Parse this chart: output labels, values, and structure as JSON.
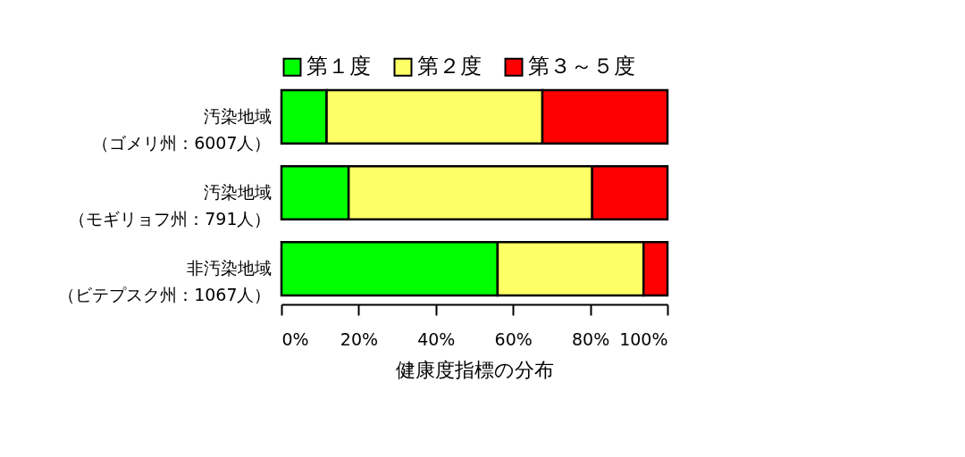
{
  "chart_data": {
    "type": "bar",
    "orientation": "horizontal",
    "stacked": true,
    "categories": [
      "汚染地域（ゴメリ州：6007人）",
      "汚染地域（モギリョフ州：791人）",
      "非汚染地域（ビテプスク州：1067人）"
    ],
    "series": [
      {
        "name": "第１度",
        "color": "#00ff00",
        "values": [
          11.7,
          17.4,
          56.0
        ]
      },
      {
        "name": "第２度",
        "color": "#ffff66",
        "values": [
          55.9,
          63.1,
          37.8
        ]
      },
      {
        "name": "第３～５度",
        "color": "#ff0000",
        "values": [
          32.4,
          19.5,
          6.2
        ]
      }
    ],
    "xlabel": "健康度指標の分布",
    "xlim": [
      0,
      100
    ],
    "xticks": [
      {
        "value": 0,
        "label": "0%"
      },
      {
        "value": 20,
        "label": "20%"
      },
      {
        "value": 40,
        "label": "40%"
      },
      {
        "value": 60,
        "label": "60%"
      },
      {
        "value": 80,
        "label": "80%"
      },
      {
        "value": 100,
        "label": "100%"
      }
    ],
    "legend": "top",
    "grid": false
  }
}
